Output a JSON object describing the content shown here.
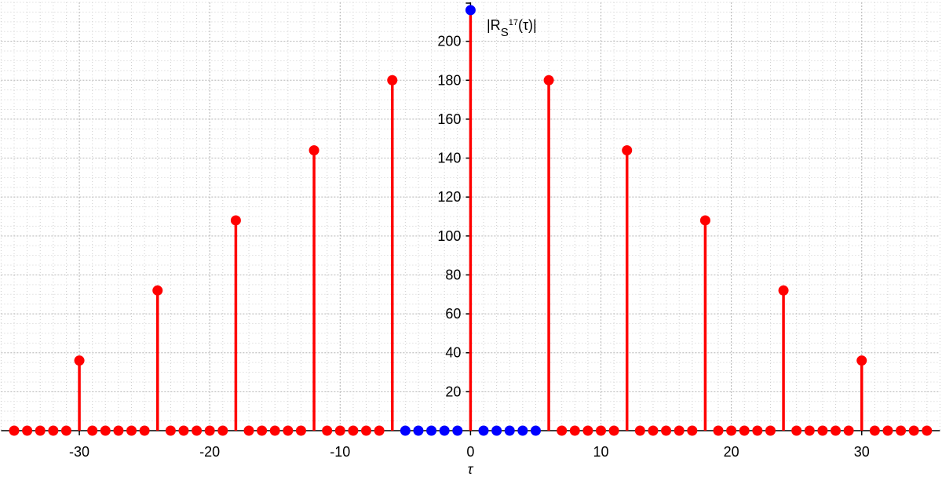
{
  "chart_data": {
    "type": "stem",
    "annotation": {
      "base": "|R",
      "sub": "S",
      "sup": "17",
      "tail": "(τ)|"
    },
    "xlabel": "τ",
    "xlim": [
      -36,
      36
    ],
    "ylim": [
      0,
      220
    ],
    "xticks": [
      -30,
      -20,
      -10,
      0,
      10,
      20,
      30
    ],
    "yticks": [
      20,
      40,
      60,
      80,
      100,
      120,
      140,
      160,
      180,
      200
    ],
    "grid": true,
    "series": [
      {
        "color": "#ff0000",
        "stem_color": "#ff0000",
        "x": [
          -35,
          -34,
          -33,
          -32,
          -31,
          -30,
          -29,
          -28,
          -27,
          -26,
          -25,
          -24,
          -23,
          -22,
          -21,
          -20,
          -19,
          -18,
          -17,
          -16,
          -15,
          -14,
          -13,
          -12,
          -11,
          -10,
          -9,
          -8,
          -7,
          -6,
          6,
          7,
          8,
          9,
          10,
          11,
          12,
          13,
          14,
          15,
          16,
          17,
          18,
          19,
          20,
          21,
          22,
          23,
          24,
          25,
          26,
          27,
          28,
          29,
          30,
          31,
          32,
          33,
          34,
          35
        ],
        "values": [
          0,
          0,
          0,
          0,
          0,
          36,
          0,
          0,
          0,
          0,
          0,
          72,
          0,
          0,
          0,
          0,
          0,
          108,
          0,
          0,
          0,
          0,
          0,
          144,
          0,
          0,
          0,
          0,
          0,
          180,
          180,
          0,
          0,
          0,
          0,
          0,
          144,
          0,
          0,
          0,
          0,
          0,
          108,
          0,
          0,
          0,
          0,
          0,
          72,
          0,
          0,
          0,
          0,
          0,
          36,
          0,
          0,
          0,
          0,
          0
        ]
      },
      {
        "color": "#0000ff",
        "stem_color": "#ff0000",
        "x": [
          -5,
          -4,
          -3,
          -2,
          -1,
          0,
          1,
          2,
          3,
          4,
          5
        ],
        "values": [
          0,
          0,
          0,
          0,
          0,
          216,
          0,
          0,
          0,
          0,
          0
        ]
      }
    ]
  }
}
